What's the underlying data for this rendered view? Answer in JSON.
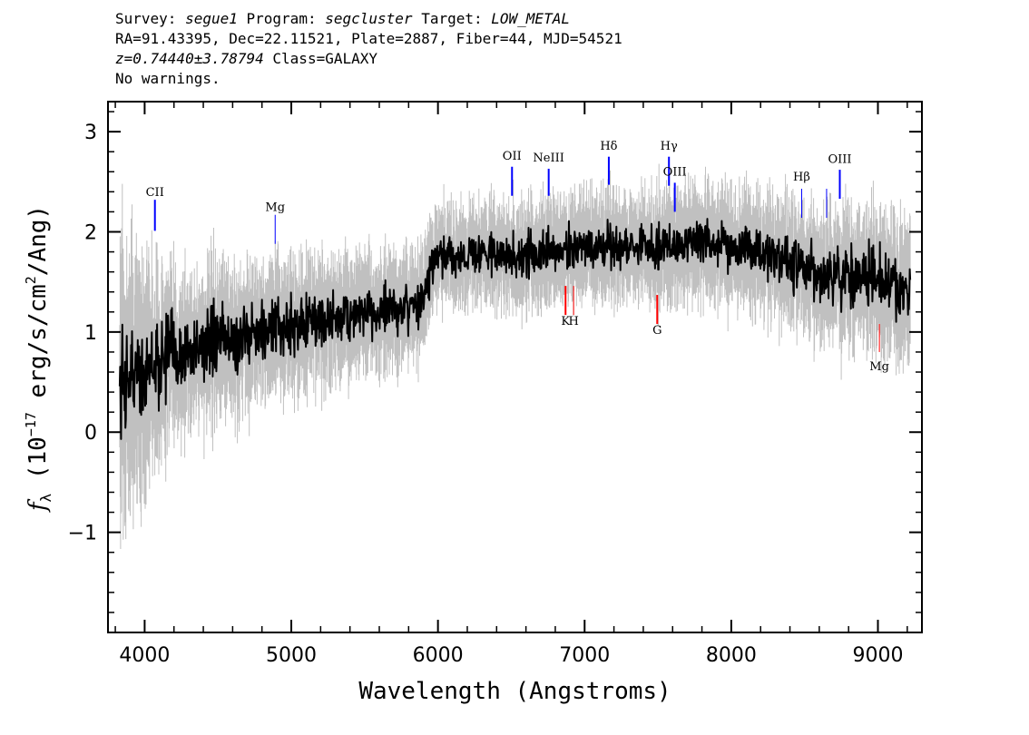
{
  "header": {
    "survey_label": "Survey:",
    "survey": "segue1",
    "program_label": "Program:",
    "program": "segcluster",
    "target_label": "Target:",
    "target": "LOW_METAL",
    "line2": "RA=91.43395, Dec=22.11521, Plate=2887, Fiber=44, MJD=54521",
    "z_value": "z=0.74440±3.78794",
    "class_text": "Class=GALAXY",
    "warnings": "No warnings."
  },
  "chart_data": {
    "type": "line",
    "xlabel": "Wavelength (Angstroms)",
    "ylabel_main": "f",
    "ylabel_sub": "λ",
    "ylabel_pre": "(10",
    "ylabel_exp": "−17",
    "ylabel_mid": "erg/s/cm",
    "ylabel_exp2": "2",
    "ylabel_post": "/Ang)",
    "xlim": [
      3750,
      9300
    ],
    "ylim": [
      -2.0,
      3.3
    ],
    "xticks": [
      4000,
      5000,
      6000,
      7000,
      8000,
      9000
    ],
    "yticks": [
      -1,
      0,
      1,
      2,
      3
    ],
    "ytick_labels": [
      "−1",
      "0",
      "1",
      "2",
      "3"
    ],
    "grid": false,
    "legend": "none",
    "series": [
      {
        "role": "flux",
        "color": "#000000",
        "x_start": 3830,
        "x_end": 9220,
        "continuum_knots": [
          [
            3830,
            0.5
          ],
          [
            4000,
            0.65
          ],
          [
            4200,
            0.75
          ],
          [
            4500,
            0.9
          ],
          [
            4800,
            1.0
          ],
          [
            5000,
            1.08
          ],
          [
            5300,
            1.15
          ],
          [
            5600,
            1.2
          ],
          [
            5880,
            1.28
          ],
          [
            5950,
            1.6
          ],
          [
            6000,
            1.72
          ],
          [
            6300,
            1.8
          ],
          [
            6500,
            1.75
          ],
          [
            7000,
            1.85
          ],
          [
            7500,
            1.85
          ],
          [
            7800,
            1.92
          ],
          [
            8200,
            1.8
          ],
          [
            8600,
            1.55
          ],
          [
            8800,
            1.6
          ],
          [
            9000,
            1.5
          ],
          [
            9220,
            1.42
          ]
        ],
        "noise_knots": [
          [
            3830,
            0.4
          ],
          [
            4300,
            0.25
          ],
          [
            5000,
            0.2
          ],
          [
            6000,
            0.15
          ],
          [
            8000,
            0.15
          ],
          [
            9220,
            0.22
          ]
        ]
      },
      {
        "role": "error",
        "color": "#c0c0c0",
        "x_start": 3830,
        "x_end": 9220,
        "noise_knots": [
          [
            3830,
            1.0
          ],
          [
            4200,
            0.55
          ],
          [
            5000,
            0.45
          ],
          [
            6000,
            0.35
          ],
          [
            8000,
            0.4
          ],
          [
            9220,
            0.5
          ]
        ]
      }
    ],
    "emission_lines": [
      {
        "label": "CII",
        "x": 4070,
        "y0": 2.01,
        "y1": 2.32,
        "label_y": 2.36,
        "color": "#0000ff",
        "stroke": 2
      },
      {
        "label": "Mg",
        "x": 4890,
        "y0": 1.88,
        "y1": 2.17,
        "label_y": 2.21,
        "color": "#0000ff",
        "stroke": 1
      },
      {
        "label": "OII",
        "x": 6505,
        "y0": 2.36,
        "y1": 2.65,
        "label_y": 2.72,
        "color": "#0000ff",
        "stroke": 2
      },
      {
        "label": "NeIII",
        "x": 6755,
        "y0": 2.36,
        "y1": 2.63,
        "label_y": 2.7,
        "color": "#0000ff",
        "stroke": 2
      },
      {
        "label": "Hδ",
        "x": 7165,
        "y0": 2.47,
        "y1": 2.75,
        "label_y": 2.82,
        "color": "#0000ff",
        "stroke": 2
      },
      {
        "label": "Hγ",
        "x": 7575,
        "y0": 2.46,
        "y1": 2.75,
        "label_y": 2.82,
        "color": "#0000ff",
        "stroke": 2
      },
      {
        "label": "OIII",
        "x": 7615,
        "y0": 2.2,
        "y1": 2.49,
        "label_y": 2.56,
        "color": "#0000ff",
        "stroke": 2
      },
      {
        "label": "Hβ",
        "x": 8480,
        "y0": 2.14,
        "y1": 2.43,
        "label_y": 2.51,
        "color": "#0000ff",
        "stroke": 1
      },
      {
        "label": "",
        "x": 8650,
        "y0": 2.14,
        "y1": 2.43,
        "color": "#0000ff",
        "stroke": 1
      },
      {
        "label": "OIII",
        "x": 8740,
        "y0": 2.33,
        "y1": 2.62,
        "label_y": 2.69,
        "color": "#0000ff",
        "stroke": 2
      }
    ],
    "absorption_lines": [
      {
        "label": "K",
        "x": 6870,
        "y0": 1.17,
        "y1": 1.46,
        "label_y": 1.07,
        "color": "#ff0000",
        "stroke": 2
      },
      {
        "label": "H",
        "x": 6925,
        "y0": 1.17,
        "y1": 1.46,
        "label_y": 1.07,
        "color": "#ff0000",
        "stroke": 1
      },
      {
        "label": "G",
        "x": 7495,
        "y0": 1.08,
        "y1": 1.37,
        "label_y": 0.98,
        "color": "#ff0000",
        "stroke": 2
      },
      {
        "label": "Mg",
        "x": 9010,
        "y0": 0.8,
        "y1": 1.08,
        "label_y": 0.62,
        "color": "#ff0000",
        "stroke": 1
      }
    ]
  }
}
